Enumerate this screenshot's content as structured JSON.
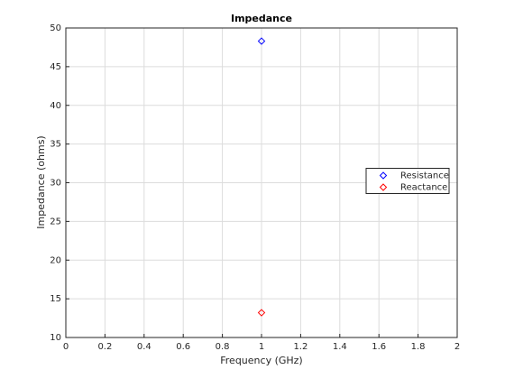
{
  "chart_data": {
    "type": "scatter",
    "title": "Impedance",
    "x_label": "Frequency (GHz)",
    "y_label": "Impedance (ohms)",
    "x": [
      1
    ],
    "series": [
      {
        "name": "Resistance",
        "color": "#0000ff",
        "values": [
          48.3
        ]
      },
      {
        "name": "Reactance",
        "color": "#ff0000",
        "values": [
          13.2
        ]
      }
    ],
    "marker": "diamond",
    "xlim": [
      0,
      2
    ],
    "xticks": [
      0,
      0.2,
      0.4,
      0.6,
      0.8,
      1,
      1.2,
      1.4,
      1.6,
      1.8,
      2
    ],
    "ylim": [
      10,
      50
    ],
    "yticks": [
      10,
      15,
      20,
      25,
      30,
      35,
      40,
      45,
      50
    ],
    "grid": true,
    "legend_position": "east"
  }
}
